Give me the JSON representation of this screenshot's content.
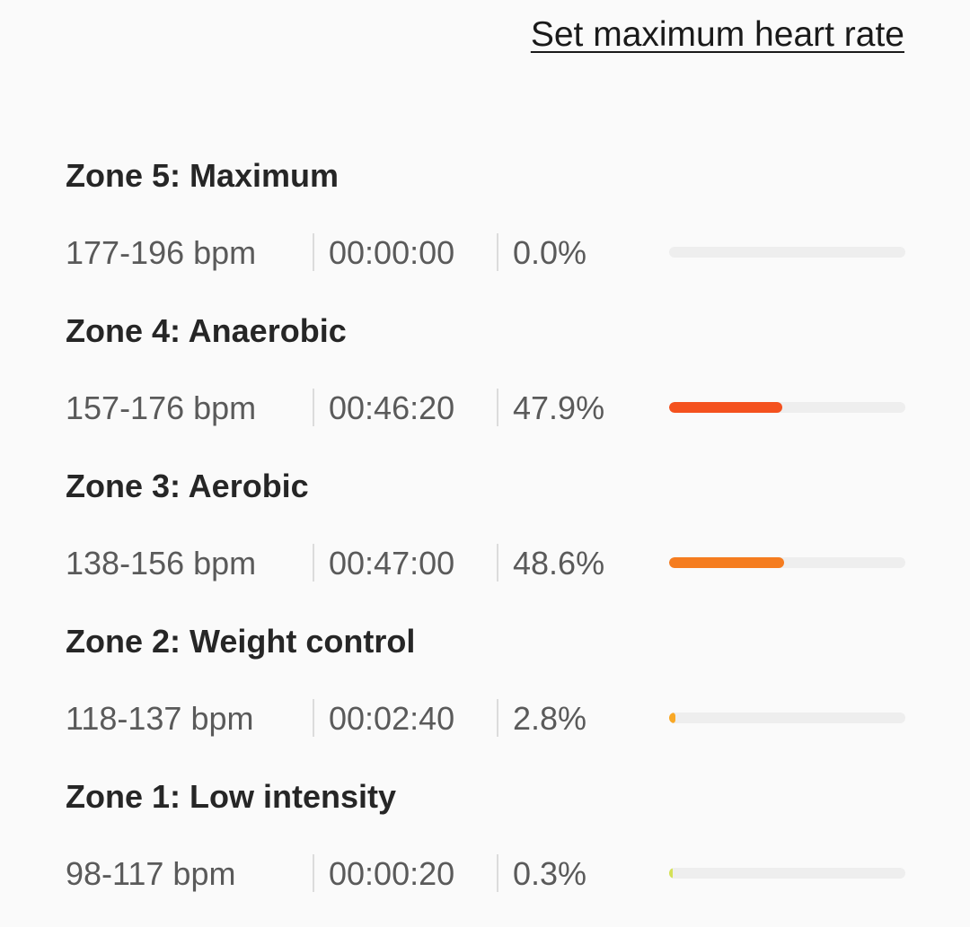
{
  "header": {
    "set_max_link": "Set maximum heart rate"
  },
  "zones": [
    {
      "title": "Zone 5: Maximum",
      "bpm": "177-196 bpm",
      "time": "00:00:00",
      "percent": "0.0%",
      "fraction": 0.0,
      "color": "#f4511e"
    },
    {
      "title": "Zone 4: Anaerobic",
      "bpm": "157-176 bpm",
      "time": "00:46:20",
      "percent": "47.9%",
      "fraction": 0.479,
      "color": "#f4511e"
    },
    {
      "title": "Zone 3: Aerobic",
      "bpm": "138-156 bpm",
      "time": "00:47:00",
      "percent": "48.6%",
      "fraction": 0.486,
      "color": "#f57c1f"
    },
    {
      "title": "Zone 2: Weight control",
      "bpm": "118-137 bpm",
      "time": "00:02:40",
      "percent": "2.8%",
      "fraction": 0.028,
      "color": "#f9a825"
    },
    {
      "title": "Zone 1: Low intensity",
      "bpm": "98-117 bpm",
      "time": "00:00:20",
      "percent": "0.3%",
      "fraction": 0.003,
      "color": "#d4e157"
    }
  ]
}
